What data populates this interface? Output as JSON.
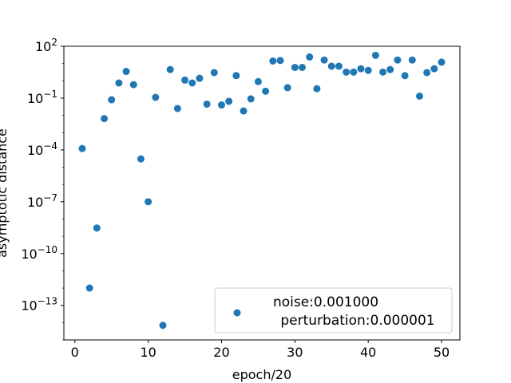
{
  "chart_data": {
    "type": "scatter",
    "title": "",
    "xlabel": "epoch/20",
    "ylabel": "asymptotic distance",
    "yscale": "log",
    "xlim": [
      -1.5,
      52.5
    ],
    "ylim_log10": [
      -15.0,
      2.0
    ],
    "xticks": [
      0,
      10,
      20,
      30,
      40,
      50
    ],
    "ytick_exponents": [
      -13,
      -10,
      -7,
      -4,
      -1,
      2
    ],
    "grid": false,
    "legend": {
      "placement": "lower-right",
      "line1": "noise:0.001000",
      "line2": "perturbation:0.000001"
    },
    "series": [
      {
        "name": "noise:0.001000 perturbation:0.000001",
        "color": "#1f77b4",
        "points": [
          {
            "x": 1,
            "y": 0.00012
          },
          {
            "x": 2,
            "y": 1e-12
          },
          {
            "x": 3,
            "y": 3e-09
          },
          {
            "x": 4,
            "y": 0.0065
          },
          {
            "x": 5,
            "y": 0.08
          },
          {
            "x": 6,
            "y": 0.75
          },
          {
            "x": 7,
            "y": 3.5
          },
          {
            "x": 8,
            "y": 0.6
          },
          {
            "x": 9,
            "y": 3e-05
          },
          {
            "x": 10,
            "y": 1e-07
          },
          {
            "x": 11,
            "y": 0.11
          },
          {
            "x": 12,
            "y": 7e-15
          },
          {
            "x": 13,
            "y": 4.5
          },
          {
            "x": 14,
            "y": 0.025
          },
          {
            "x": 15,
            "y": 1.1
          },
          {
            "x": 16,
            "y": 0.75
          },
          {
            "x": 17,
            "y": 1.4
          },
          {
            "x": 18,
            "y": 0.045
          },
          {
            "x": 19,
            "y": 3.0
          },
          {
            "x": 20,
            "y": 0.04
          },
          {
            "x": 21,
            "y": 0.065
          },
          {
            "x": 22,
            "y": 2.0
          },
          {
            "x": 23,
            "y": 0.018
          },
          {
            "x": 24,
            "y": 0.09
          },
          {
            "x": 25,
            "y": 0.9
          },
          {
            "x": 26,
            "y": 0.25
          },
          {
            "x": 27,
            "y": 14.0
          },
          {
            "x": 28,
            "y": 15.0
          },
          {
            "x": 29,
            "y": 0.4
          },
          {
            "x": 30,
            "y": 6.0
          },
          {
            "x": 31,
            "y": 6.0
          },
          {
            "x": 32,
            "y": 24.0
          },
          {
            "x": 33,
            "y": 0.35
          },
          {
            "x": 34,
            "y": 16.0
          },
          {
            "x": 35,
            "y": 7.0
          },
          {
            "x": 36,
            "y": 7.0
          },
          {
            "x": 37,
            "y": 3.2
          },
          {
            "x": 38,
            "y": 3.2
          },
          {
            "x": 39,
            "y": 5.0
          },
          {
            "x": 40,
            "y": 4.0
          },
          {
            "x": 41,
            "y": 30.0
          },
          {
            "x": 42,
            "y": 3.2
          },
          {
            "x": 43,
            "y": 4.5
          },
          {
            "x": 44,
            "y": 16.0
          },
          {
            "x": 45,
            "y": 2.0
          },
          {
            "x": 46,
            "y": 16.0
          },
          {
            "x": 47,
            "y": 0.13
          },
          {
            "x": 48,
            "y": 3.0
          },
          {
            "x": 49,
            "y": 5.0
          },
          {
            "x": 50,
            "y": 12.0
          }
        ]
      }
    ]
  }
}
